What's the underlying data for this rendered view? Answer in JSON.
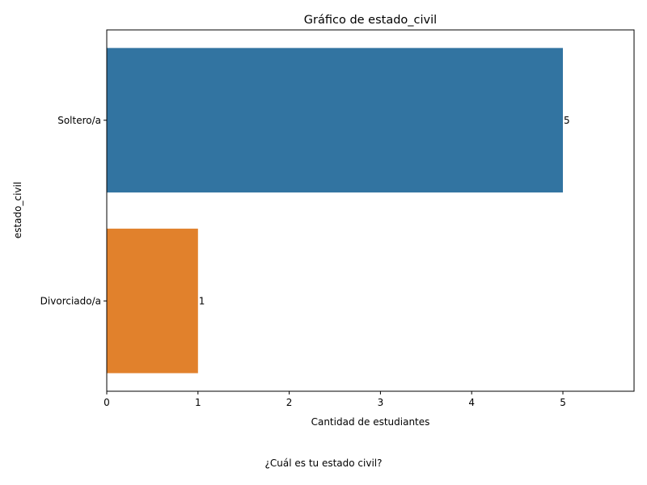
{
  "chart_data": {
    "type": "bar",
    "orientation": "horizontal",
    "title": "Gráfico de estado_civil",
    "xlabel": "Cantidad de estudiantes",
    "ylabel": "estado_civil",
    "categories": [
      "Soltero/a",
      "Divorciado/a"
    ],
    "values": [
      5,
      1
    ],
    "data_labels": [
      "5",
      "1"
    ],
    "colors": [
      "#3274a1",
      "#e1812c"
    ],
    "xlim": [
      0,
      5.78
    ],
    "xticks": [
      0,
      1,
      2,
      3,
      4,
      5
    ],
    "grid": false,
    "legend": "none"
  },
  "caption": "¿Cuál es tu estado civil?"
}
